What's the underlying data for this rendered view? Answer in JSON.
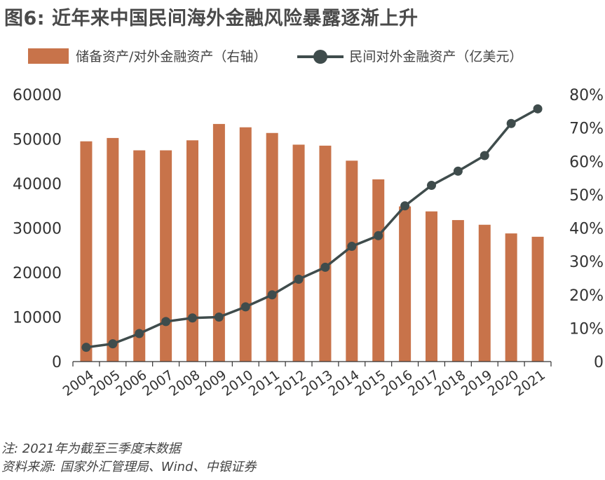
{
  "title": "图6: 近年来中国民间海外金融风险暴露逐渐上升",
  "legend": {
    "bar_label": "储备资产/对外金融资产（右轴）",
    "line_label": "民间对外金融资产（亿美元）"
  },
  "colors": {
    "bar": "#c8734a",
    "line": "#3f4c4c",
    "axis": "#333333"
  },
  "chart_data": {
    "type": "bar+line",
    "categories": [
      "2004",
      "2005",
      "2006",
      "2007",
      "2008",
      "2009",
      "2010",
      "2011",
      "2012",
      "2013",
      "2014",
      "2015",
      "2016",
      "2017",
      "2018",
      "2019",
      "2020",
      "2021"
    ],
    "series": [
      {
        "name": "储备资产/对外金融资产（右轴）",
        "type": "bar",
        "axis": "right",
        "unit": "%",
        "values": [
          66,
          67,
          63.3,
          63.3,
          66.3,
          71.2,
          70.2,
          68.5,
          65,
          64.7,
          60.2,
          54.6,
          46.5,
          45,
          42.4,
          41,
          38.4,
          37.4
        ]
      },
      {
        "name": "民间对外金融资产（亿美元）",
        "type": "line",
        "axis": "left",
        "values": [
          3200,
          4000,
          6300,
          9000,
          9800,
          10000,
          12300,
          15000,
          18500,
          21200,
          25900,
          28300,
          35000,
          39600,
          42800,
          46300,
          53500,
          56800
        ]
      }
    ],
    "y_left": {
      "min": 0,
      "max": 60000,
      "ticks": [
        "0",
        "10000",
        "20000",
        "30000",
        "40000",
        "50000",
        "60000"
      ]
    },
    "y_right": {
      "min": 0,
      "max": 80,
      "ticks": [
        "0",
        "10%",
        "20%",
        "30%",
        "40%",
        "50%",
        "60%",
        "70%",
        "80%"
      ]
    }
  },
  "note": "注: 2021年为截至三季度末数据",
  "source": "资料来源: 国家外汇管理局、Wind、中银证券"
}
